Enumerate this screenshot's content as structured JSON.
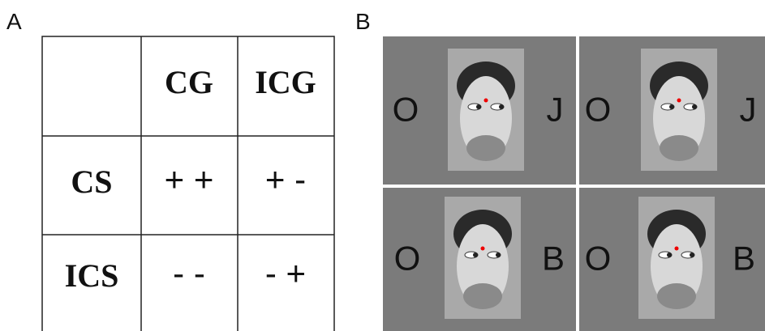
{
  "panel_a": {
    "label": "A",
    "table": {
      "columns": [
        "CG",
        "ICG"
      ],
      "rows": [
        {
          "label": "CS",
          "cells": [
            "+ +",
            "+ -"
          ]
        },
        {
          "label": "ICS",
          "cells": [
            "- -",
            "- +"
          ]
        }
      ]
    }
  },
  "panel_b": {
    "label": "B",
    "panels": [
      {
        "left": "O",
        "right": "J"
      },
      {
        "left": "O",
        "right": "J"
      },
      {
        "left": "O",
        "right": "B"
      },
      {
        "left": "O",
        "right": "B"
      }
    ]
  }
}
